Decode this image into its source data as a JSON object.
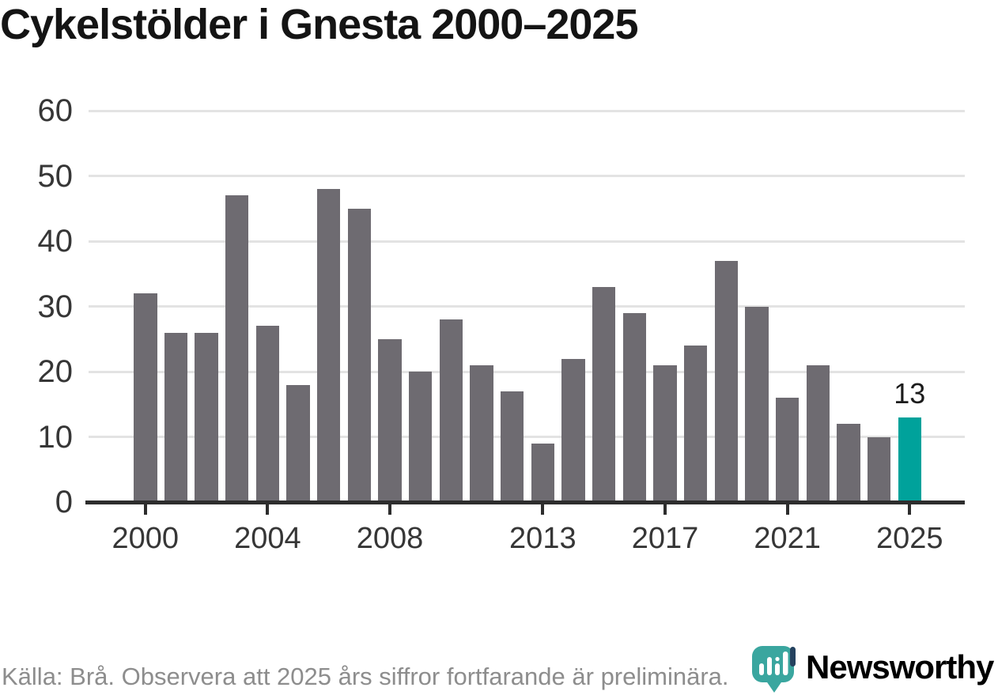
{
  "title": "Cykelstölder i Gnesta 2000–2025",
  "footer": "Källa: Brå. Observera att 2025 års siffror fortfarande är preliminära.",
  "logo": {
    "wordmark": "Newsworthy",
    "icon": "newsworthy-speech-bubble-bar-chart-icon"
  },
  "colors": {
    "bar": "#6e6b71",
    "highlight": "#00a29b",
    "grid": "#e3e3e3",
    "axis": "#2d2d2d",
    "axis_text": "#363636",
    "title_text": "#141414",
    "footer_text": "#8d8d8d",
    "logo_teal": "#3aa69f",
    "logo_navy": "#24425f",
    "value_label_text": "#1c1c1c"
  },
  "chart_data": {
    "type": "bar",
    "title": "Cykelstölder i Gnesta 2000–2025",
    "categories": [
      "2000",
      "2001",
      "2002",
      "2003",
      "2004",
      "2005",
      "2006",
      "2007",
      "2008",
      "2009",
      "2010",
      "2011",
      "2012",
      "2013",
      "2014",
      "2015",
      "2016",
      "2017",
      "2018",
      "2019",
      "2020",
      "2021",
      "2022",
      "2023",
      "2024",
      "2025"
    ],
    "values": [
      32,
      26,
      26,
      47,
      27,
      18,
      48,
      45,
      25,
      20,
      28,
      21,
      17,
      9,
      22,
      33,
      29,
      21,
      24,
      37,
      30,
      16,
      21,
      12,
      10,
      13
    ],
    "highlight": {
      "category": "2025",
      "value": 13,
      "label": "13"
    },
    "xlabel": "",
    "ylabel": "",
    "ylim": [
      0,
      60
    ],
    "yticks": [
      0,
      10,
      20,
      30,
      40,
      50,
      60
    ],
    "xtick_labels": [
      "2000",
      "2004",
      "2008",
      "2013",
      "2017",
      "2021",
      "2025"
    ],
    "grid": true,
    "legend_position": "none"
  }
}
